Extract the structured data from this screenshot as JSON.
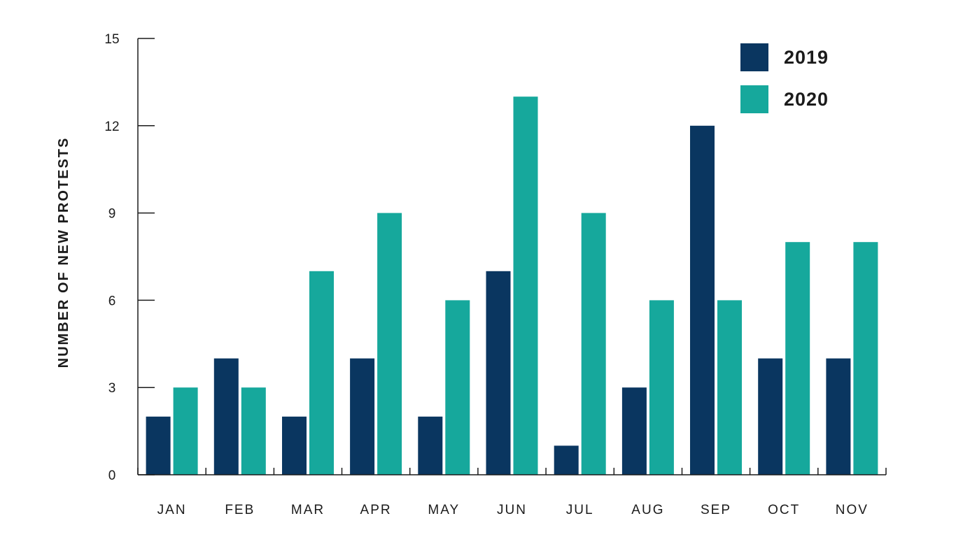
{
  "chart_data": {
    "type": "bar",
    "title": "",
    "xlabel": "",
    "ylabel": "NUMBER OF NEW PROTESTS",
    "ylim": [
      0,
      15
    ],
    "yticks": [
      0,
      3,
      6,
      9,
      12,
      15
    ],
    "categories": [
      "JAN",
      "FEB",
      "MAR",
      "APR",
      "MAY",
      "JUN",
      "JUL",
      "AUG",
      "SEP",
      "OCT",
      "NOV"
    ],
    "series": [
      {
        "name": "2019",
        "color": "#0a3660",
        "values": [
          2,
          4,
          2,
          4,
          2,
          7,
          1,
          3,
          12,
          4,
          4
        ]
      },
      {
        "name": "2020",
        "color": "#16a89c",
        "values": [
          3,
          3,
          7,
          9,
          6,
          13,
          9,
          6,
          6,
          8,
          8
        ]
      }
    ],
    "grid": false,
    "legend": "top-right"
  }
}
